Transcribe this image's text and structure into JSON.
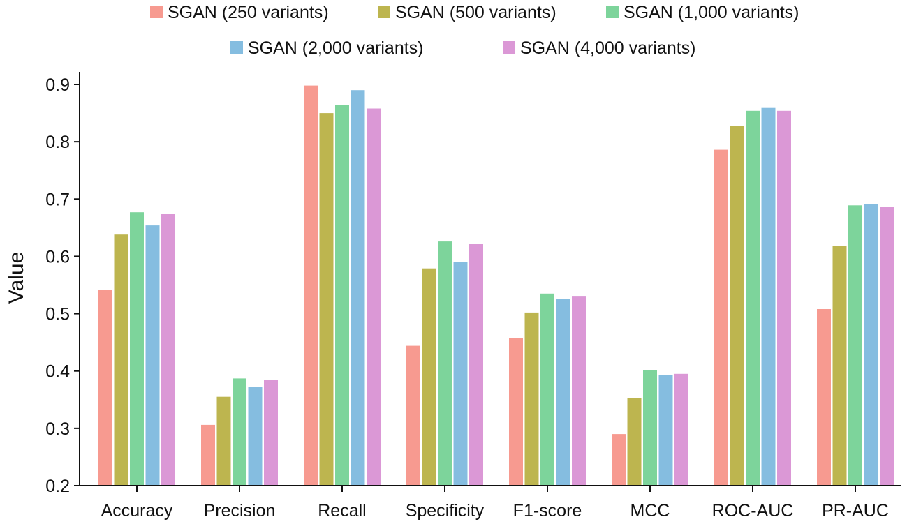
{
  "chart_data": {
    "type": "bar",
    "title": "",
    "xlabel": "",
    "ylabel": "Value",
    "ylim": [
      0.2,
      0.9
    ],
    "yticks": [
      "0.2",
      "0.3",
      "0.4",
      "0.5",
      "0.6",
      "0.7",
      "0.8",
      "0.9"
    ],
    "grid": false,
    "legend_position": "top-center",
    "categories": [
      "Accuracy",
      "Precision",
      "Recall",
      "Specificity",
      "F1-score",
      "MCC",
      "ROC-AUC",
      "PR-AUC"
    ],
    "series": [
      {
        "name": "SGAN (250 variants)",
        "color": "#F79A90",
        "values": [
          0.542,
          0.306,
          0.898,
          0.444,
          0.457,
          0.29,
          0.786,
          0.508
        ]
      },
      {
        "name": "SGAN (500 variants)",
        "color": "#BDB54F",
        "values": [
          0.638,
          0.355,
          0.85,
          0.579,
          0.502,
          0.353,
          0.828,
          0.618
        ]
      },
      {
        "name": "SGAN (1,000 variants)",
        "color": "#7DD49B",
        "values": [
          0.677,
          0.387,
          0.864,
          0.626,
          0.535,
          0.402,
          0.854,
          0.689
        ]
      },
      {
        "name": "SGAN (2,000 variants)",
        "color": "#85BDE0",
        "values": [
          0.654,
          0.372,
          0.89,
          0.59,
          0.525,
          0.393,
          0.859,
          0.691
        ]
      },
      {
        "name": "SGAN (4,000 variants)",
        "color": "#DB98D6",
        "values": [
          0.674,
          0.384,
          0.858,
          0.622,
          0.531,
          0.395,
          0.854,
          0.686
        ]
      }
    ]
  }
}
